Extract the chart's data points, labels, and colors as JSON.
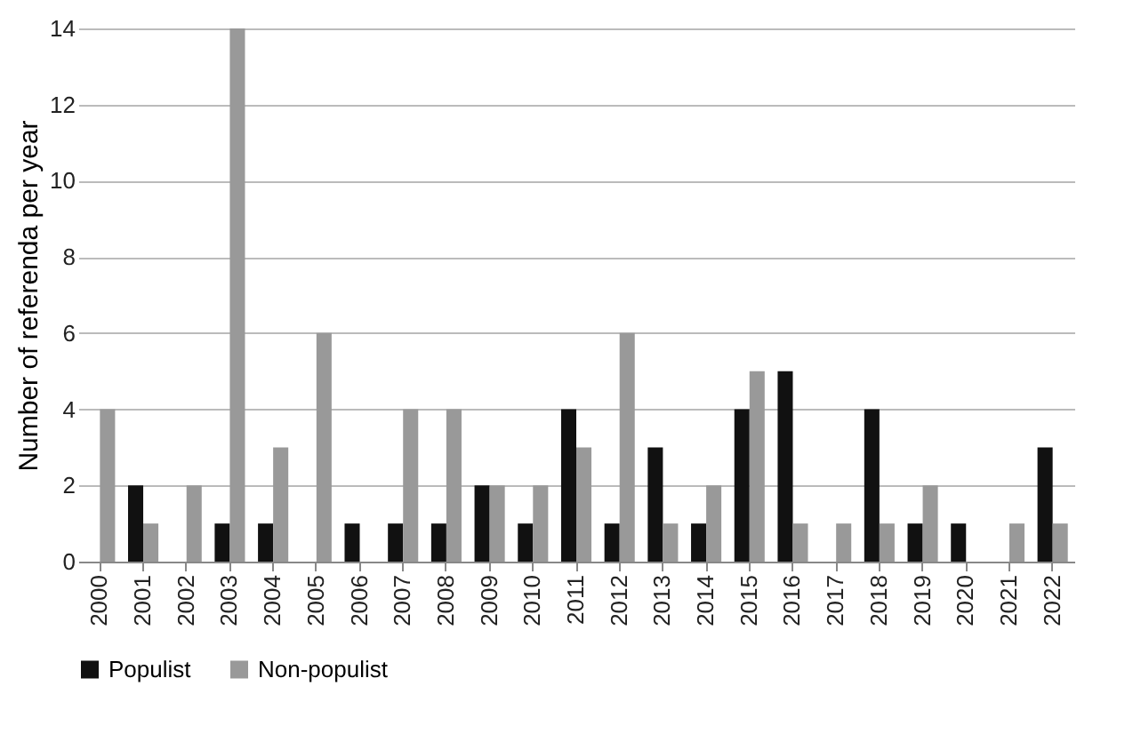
{
  "chart_data": {
    "type": "bar",
    "ylabel": "Number of referenda per year",
    "categories": [
      "2000",
      "2001",
      "2002",
      "2003",
      "2004",
      "2005",
      "2006",
      "2007",
      "2008",
      "2009",
      "2010",
      "2011",
      "2012",
      "2013",
      "2014",
      "2015",
      "2016",
      "2017",
      "2018",
      "2019",
      "2020",
      "2021",
      "2022"
    ],
    "series": [
      {
        "name": "Populist",
        "color": "#111111",
        "values": [
          0,
          2,
          0,
          1,
          1,
          0,
          1,
          1,
          1,
          2,
          1,
          4,
          1,
          3,
          1,
          4,
          5,
          0,
          4,
          1,
          1,
          0,
          3
        ]
      },
      {
        "name": "Non-populist",
        "color": "#999999",
        "values": [
          4,
          1,
          2,
          14,
          3,
          6,
          0,
          4,
          4,
          2,
          2,
          3,
          6,
          1,
          2,
          5,
          1,
          1,
          1,
          2,
          0,
          1,
          1
        ]
      }
    ],
    "ylim": [
      0,
      14
    ],
    "yticks": [
      0,
      2,
      4,
      6,
      8,
      10,
      12,
      14
    ],
    "grid": "y",
    "legend": "bottom"
  }
}
